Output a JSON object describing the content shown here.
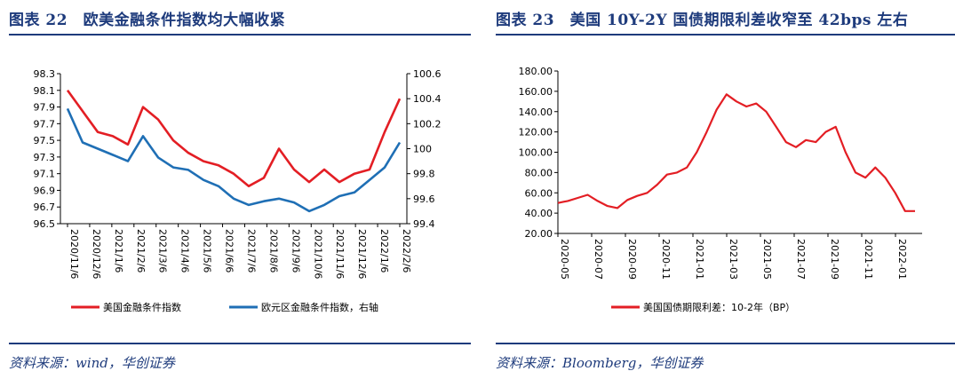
{
  "left": {
    "title": "图表 22　欧美金融条件指数均大幅收紧",
    "source": "资料来源：wind，华创证券"
  },
  "right": {
    "title": "图表 23　美国 10Y-2Y 国债期限利差收窄至 42bps 左右",
    "source": "资料来源：Bloomberg，华创证券"
  },
  "colors": {
    "red": "#e31e24",
    "blue": "#1f6fb5",
    "navy": "#1e3b7c"
  },
  "chart_data": [
    {
      "type": "line",
      "title": "欧美金融条件指数",
      "x_ticks": [
        "2020/11/6",
        "2020/12/6",
        "2021/1/6",
        "2021/2/6",
        "2021/3/6",
        "2021/4/6",
        "2021/5/6",
        "2021/6/6",
        "2021/7/6",
        "2021/8/6",
        "2021/9/6",
        "2021/10/6",
        "2021/11/6",
        "2021/12/6",
        "2022/1/6",
        "2022/2/6"
      ],
      "y_left_ticks": [
        "98.3",
        "98.1",
        "97.9",
        "97.7",
        "97.5",
        "97.3",
        "97.1",
        "96.9",
        "96.7",
        "96.5"
      ],
      "y_right_ticks": [
        "100.6",
        "100.4",
        "100.2",
        "100",
        "99.8",
        "99.6",
        "99.4"
      ],
      "ylim_left": [
        96.5,
        98.3
      ],
      "ylim_right": [
        99.4,
        100.6
      ],
      "series": [
        {
          "name": "美国金融条件指数",
          "axis": "left",
          "color": "#e31e24",
          "values": [
            98.1,
            97.85,
            97.6,
            97.55,
            97.45,
            97.9,
            97.75,
            97.5,
            97.35,
            97.25,
            97.2,
            97.1,
            96.95,
            97.05,
            97.4,
            97.15,
            97.0,
            97.15,
            97.0,
            97.1,
            97.15,
            97.6,
            98.0
          ]
        },
        {
          "name": "欧元区金融条件指数，右轴",
          "axis": "right",
          "color": "#1f6fb5",
          "values": [
            100.32,
            100.05,
            100.0,
            99.95,
            99.9,
            100.1,
            99.93,
            99.85,
            99.83,
            99.75,
            99.7,
            99.6,
            99.55,
            99.58,
            99.6,
            99.57,
            99.5,
            99.55,
            99.62,
            99.65,
            99.75,
            99.85,
            100.05
          ]
        }
      ]
    },
    {
      "type": "line",
      "title": "美国国债期限利差",
      "x_ticks": [
        "2020-05",
        "2020-07",
        "2020-09",
        "2020-11",
        "2021-01",
        "2021-03",
        "2021-05",
        "2021-07",
        "2021-09",
        "2021-11",
        "2022-01"
      ],
      "y_ticks": [
        "180.00",
        "160.00",
        "140.00",
        "120.00",
        "100.00",
        "80.00",
        "60.00",
        "40.00",
        "20.00"
      ],
      "ylim": [
        20,
        180
      ],
      "series": [
        {
          "name": "美国国债期限利差：10-2年（BP）",
          "color": "#e31e24",
          "values": [
            50,
            52,
            55,
            58,
            52,
            47,
            45,
            53,
            57,
            60,
            68,
            78,
            80,
            85,
            100,
            120,
            142,
            157,
            150,
            145,
            148,
            140,
            125,
            110,
            105,
            112,
            110,
            120,
            125,
            100,
            80,
            75,
            85,
            75,
            60,
            42,
            42
          ]
        }
      ]
    }
  ]
}
